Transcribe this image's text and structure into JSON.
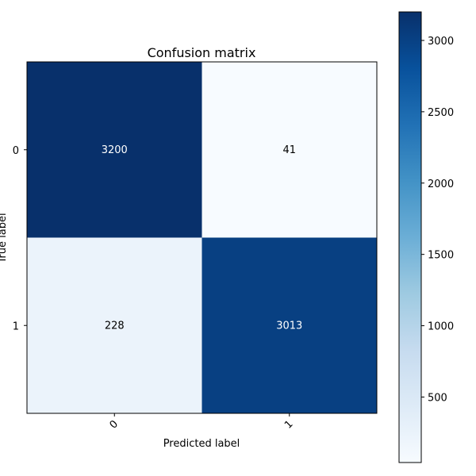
{
  "chart_data": {
    "type": "heatmap",
    "title": "Confusion matrix",
    "xlabel": "Predicted label",
    "ylabel": "True label",
    "x_categories": [
      "0",
      "1"
    ],
    "y_categories": [
      "0",
      "1"
    ],
    "values": [
      [
        3200,
        41
      ],
      [
        228,
        3013
      ]
    ],
    "colormap": "Blues",
    "colorbar": {
      "min": 41,
      "max": 3200,
      "ticks": [
        500,
        1000,
        1500,
        2000,
        2500,
        3000
      ]
    },
    "cell_label_colors": {
      "dark": "#ffffff"
    }
  }
}
